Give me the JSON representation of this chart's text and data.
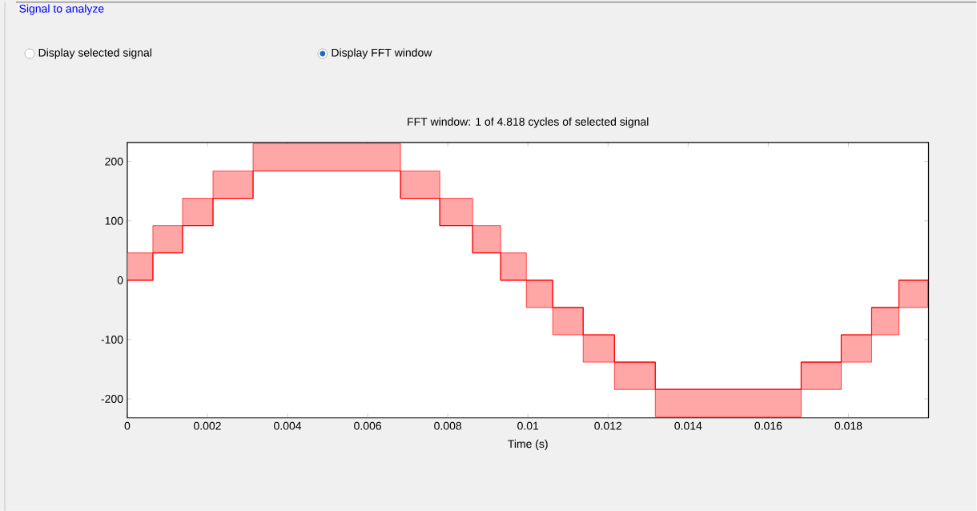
{
  "chart_data": {
    "type": "line",
    "title": "FFT window: 1 of 4.818 cycles of selected signal",
    "xlabel": "Time (s)",
    "annotations": [
      "Signal to analyze",
      "Display selected signal",
      "Display FFT window"
    ],
    "xlim": [
      0,
      0.02
    ],
    "ylim": [
      -232,
      232
    ],
    "xticks": [
      0,
      0.002,
      0.004,
      0.006,
      0.008,
      0.01,
      0.012,
      0.014,
      0.016,
      0.018
    ],
    "yticks": [
      -200,
      -100,
      0,
      100,
      200
    ],
    "grid": false,
    "series": [
      {
        "type": "step",
        "color": "#ff0000",
        "x": [
          0,
          0.00064,
          0.00138,
          0.00214,
          0.00314,
          0.00682,
          0.0078,
          0.00862,
          0.00932,
          0.00996,
          0.01062,
          0.01138,
          0.01216,
          0.01318,
          0.01682,
          0.01782,
          0.01858,
          0.01926,
          0.01998,
          0.02
        ],
        "values": [
          0,
          46,
          92,
          138,
          184,
          138,
          92,
          46,
          0,
          0,
          -46,
          -92,
          -138,
          -184,
          -138,
          -92,
          -46,
          0,
          0,
          0
        ],
        "lower": [
          0,
          46,
          92,
          138,
          184,
          138,
          92,
          46,
          0,
          -46,
          -92,
          -138,
          -184,
          -230,
          -184,
          -138,
          -92,
          -46,
          0,
          0
        ],
        "upper": [
          46,
          92,
          138,
          184,
          230,
          184,
          138,
          92,
          46,
          0,
          -46,
          -92,
          -138,
          -184,
          -138,
          -92,
          -46,
          0,
          0,
          0
        ]
      }
    ]
  }
}
